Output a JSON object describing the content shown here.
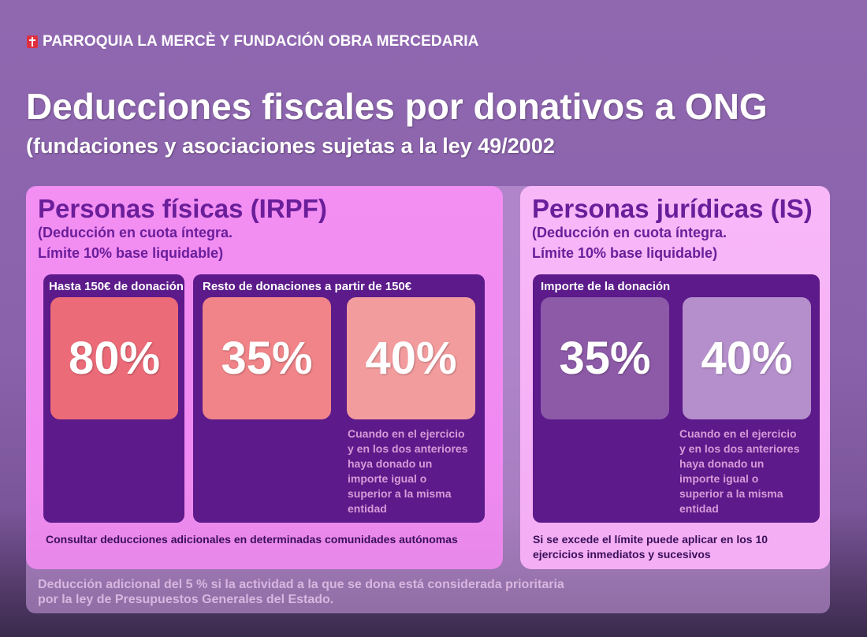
{
  "header": {
    "org": "PARROQUIA LA MERCÈ Y FUNDACIÓN OBRA MERCEDARIA",
    "icon": "cross-shield-icon"
  },
  "title": "Deducciones fiscales por donativos a ONG",
  "subtitle": "(fundaciones y asociaciones sujetas a la ley 49/2002",
  "left": {
    "title": "Personas físicas (IRPF)",
    "sub1": "(Deducción en cuota íntegra.",
    "sub2": "Límite 10% base liquidable)",
    "box1_label": "Hasta 150€ de donación",
    "box2_label": "Resto de donaciones a partir de 150€",
    "tile1": "80%",
    "tile2": "35%",
    "tile3": "40%",
    "note": [
      "Cuando en  el ejercicio",
      "y en los dos anteriores",
      "haya donado un",
      "importe igual o",
      "superior a la misma",
      "entidad"
    ],
    "footer": "Consultar deducciones adicionales en determinadas comunidades autónomas"
  },
  "right": {
    "title": "Personas jurídicas (IS)",
    "sub1": "(Deducción en cuota íntegra.",
    "sub2": "Límite 10% base liquidable)",
    "box_label": "Importe de la donación",
    "tile1": "35%",
    "tile2": "40%",
    "note": [
      "Cuando en  el ejercicio",
      "y en los dos anteriores",
      "haya donado un",
      "importe igual o",
      "superior a la misma",
      "entidad"
    ],
    "footer1": "Si se excede el límite puede aplicar en los 10",
    "footer2": "ejercicios inmediatos y sucesivos"
  },
  "bottom": {
    "line1": "Deducción adicional del 5 % si la actividad a la que se dona está considerada prioritaria",
    "line2": "por la ley de Presupuestos Generales del Estado."
  },
  "colors": {
    "tile_80": "#ec6b78",
    "tile_35_left": "#f08488",
    "tile_40_left": "#f39c9e",
    "tile_35_right": "#8d5aa8",
    "tile_40_right": "#b58fcb"
  }
}
